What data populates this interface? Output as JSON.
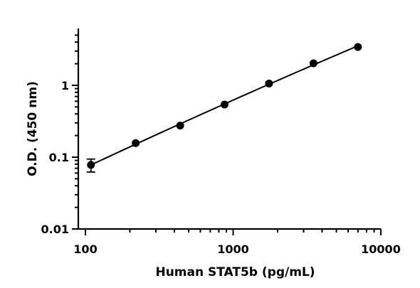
{
  "chart_data": {
    "type": "scatter",
    "title": "",
    "xlabel": "Human STAT5b (pg/mL)",
    "ylabel": "O.D. (450 nm)",
    "xscale": "log",
    "yscale": "log",
    "xlim": [
      100,
      10000
    ],
    "ylim": [
      0.01,
      5
    ],
    "x_ticks": [
      100,
      1000,
      10000
    ],
    "x_tick_labels": [
      "100",
      "1000",
      "10000"
    ],
    "y_ticks": [
      0.01,
      0.1,
      1
    ],
    "y_tick_labels": [
      "0.01",
      "0.1",
      "1"
    ],
    "grid": false,
    "legend": "none",
    "series": [
      {
        "x": [
          109,
          219,
          438,
          875,
          1750,
          3500,
          7000
        ],
        "y": [
          0.078,
          0.157,
          0.275,
          0.54,
          1.06,
          2.03,
          3.42
        ],
        "y_err": [
          0.016,
          0,
          0,
          0,
          0,
          0,
          0
        ]
      }
    ],
    "fit_line": true
  }
}
